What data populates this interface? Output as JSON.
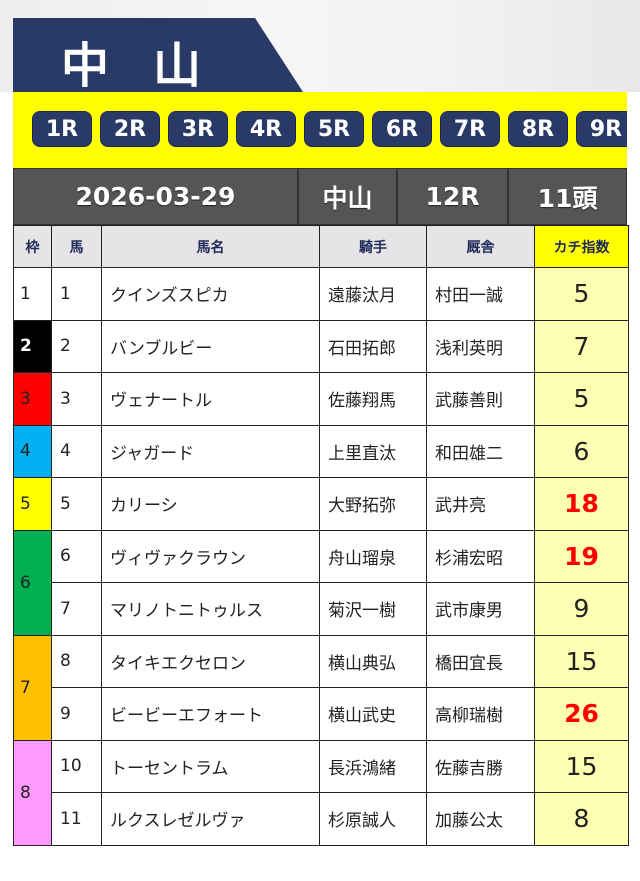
{
  "venue_title": "中山",
  "race_buttons": [
    "1R",
    "2R",
    "3R",
    "4R",
    "5R",
    "6R",
    "7R",
    "8R",
    "9R"
  ],
  "info": {
    "date": "2026-03-29",
    "venue": "中山",
    "race": "12R",
    "runners": "11頭"
  },
  "columns": [
    "枠",
    "馬",
    "馬名",
    "騎手",
    "厩舎",
    "カチ指数"
  ],
  "frame_colors": {
    "1": "#ffffff",
    "2": "#000000",
    "3": "#ff0000",
    "4": "#00b0f0",
    "5": "#ffff00",
    "6": "#00b050",
    "7": "#ffc000",
    "8": "#ff99ff"
  },
  "highlight_color": "#ff0000",
  "rows": [
    {
      "frame": "1",
      "num": "1",
      "name": "クインズスピカ",
      "jockey": "遠藤汰月",
      "trainer": "村田一誠",
      "index": "5",
      "hot": false
    },
    {
      "frame": "2",
      "num": "2",
      "name": "バンブルビー",
      "jockey": "石田拓郎",
      "trainer": "浅利英明",
      "index": "7",
      "hot": false
    },
    {
      "frame": "3",
      "num": "3",
      "name": "ヴェナートル",
      "jockey": "佐藤翔馬",
      "trainer": "武藤善則",
      "index": "5",
      "hot": false
    },
    {
      "frame": "4",
      "num": "4",
      "name": "ジャガード",
      "jockey": "上里直汰",
      "trainer": "和田雄二",
      "index": "6",
      "hot": false
    },
    {
      "frame": "5",
      "num": "5",
      "name": "カリーシ",
      "jockey": "大野拓弥",
      "trainer": "武井亮",
      "index": "18",
      "hot": true
    },
    {
      "frame": "6",
      "num": "6",
      "name": "ヴィヴァクラウン",
      "jockey": "舟山瑠泉",
      "trainer": "杉浦宏昭",
      "index": "19",
      "hot": true
    },
    {
      "frame": "6",
      "num": "7",
      "name": "マリノトニトゥルス",
      "jockey": "菊沢一樹",
      "trainer": "武市康男",
      "index": "9",
      "hot": false
    },
    {
      "frame": "7",
      "num": "8",
      "name": "タイキエクセロン",
      "jockey": "横山典弘",
      "trainer": "橋田宜長",
      "index": "15",
      "hot": false
    },
    {
      "frame": "7",
      "num": "9",
      "name": "ビービーエフォート",
      "jockey": "横山武史",
      "trainer": "高柳瑞樹",
      "index": "26",
      "hot": true
    },
    {
      "frame": "8",
      "num": "10",
      "name": "トーセントラム",
      "jockey": "長浜鴻緒",
      "trainer": "佐藤吉勝",
      "index": "15",
      "hot": false
    },
    {
      "frame": "8",
      "num": "11",
      "name": "ルクスレゼルヴァ",
      "jockey": "杉原誠人",
      "trainer": "加藤公太",
      "index": "8",
      "hot": false
    }
  ]
}
